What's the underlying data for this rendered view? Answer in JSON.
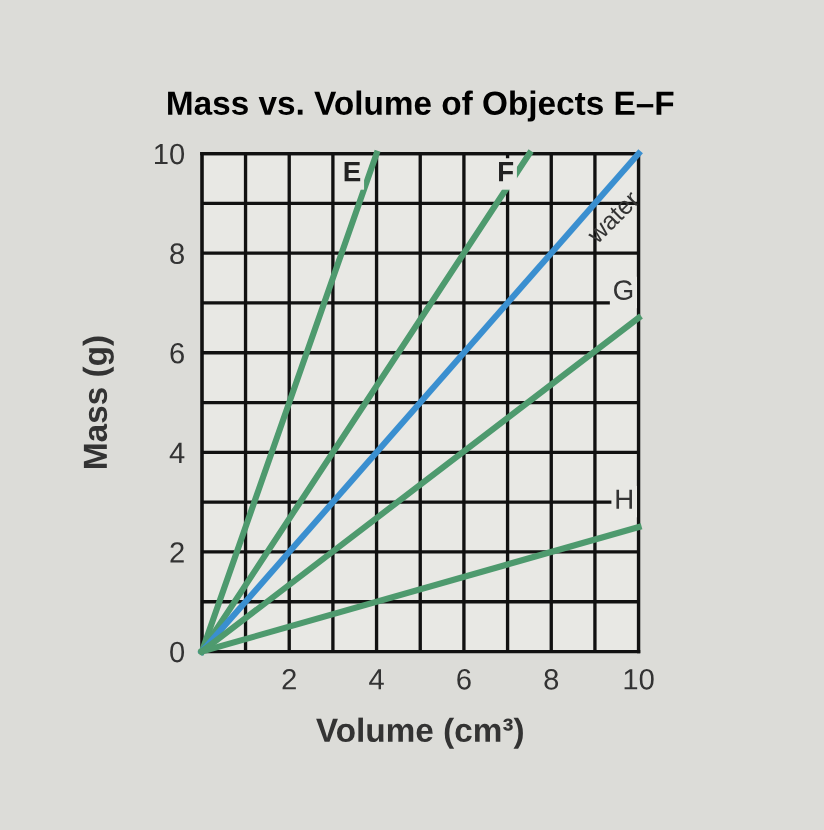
{
  "chart_data": {
    "type": "line",
    "title": "Mass vs. Volume of Objects E–F",
    "xlabel": "Volume (cm³)",
    "ylabel": "Mass (g)",
    "xlim": [
      0,
      10
    ],
    "ylim": [
      0,
      10
    ],
    "xticks": [
      {
        "value": 0,
        "label": null
      },
      {
        "value": 1,
        "label": null
      },
      2,
      {
        "value": 3,
        "label": null
      },
      4,
      {
        "value": 5,
        "label": null
      },
      6,
      {
        "value": 7,
        "label": null
      },
      8,
      {
        "value": 9,
        "label": null
      },
      10
    ],
    "yticks": [
      0,
      {
        "value": 1,
        "label": null
      },
      2,
      {
        "value": 3,
        "label": null
      },
      4,
      {
        "value": 5,
        "label": null
      },
      6,
      {
        "value": 7,
        "label": null
      },
      8,
      {
        "value": 9,
        "label": null
      },
      10
    ],
    "grid": true,
    "legend": false,
    "marker": "none",
    "line_style": "solid",
    "series": [
      {
        "name": "E",
        "color": "#4e9a6e",
        "x": [
          0,
          4
        ],
        "values": [
          0,
          10
        ]
      },
      {
        "name": "F",
        "color": "#4e9a6e",
        "x": [
          0,
          7.5
        ],
        "values": [
          0,
          10
        ]
      },
      {
        "name": "water",
        "color": "#3a8fd0",
        "x": [
          0,
          10
        ],
        "values": [
          0,
          10
        ]
      },
      {
        "name": "G",
        "color": "#4e9a6e",
        "x": [
          0,
          10
        ],
        "values": [
          0,
          6.7
        ]
      },
      {
        "name": "H",
        "color": "#4e9a6e",
        "x": [
          0,
          10
        ],
        "values": [
          0,
          2.5
        ]
      }
    ]
  }
}
